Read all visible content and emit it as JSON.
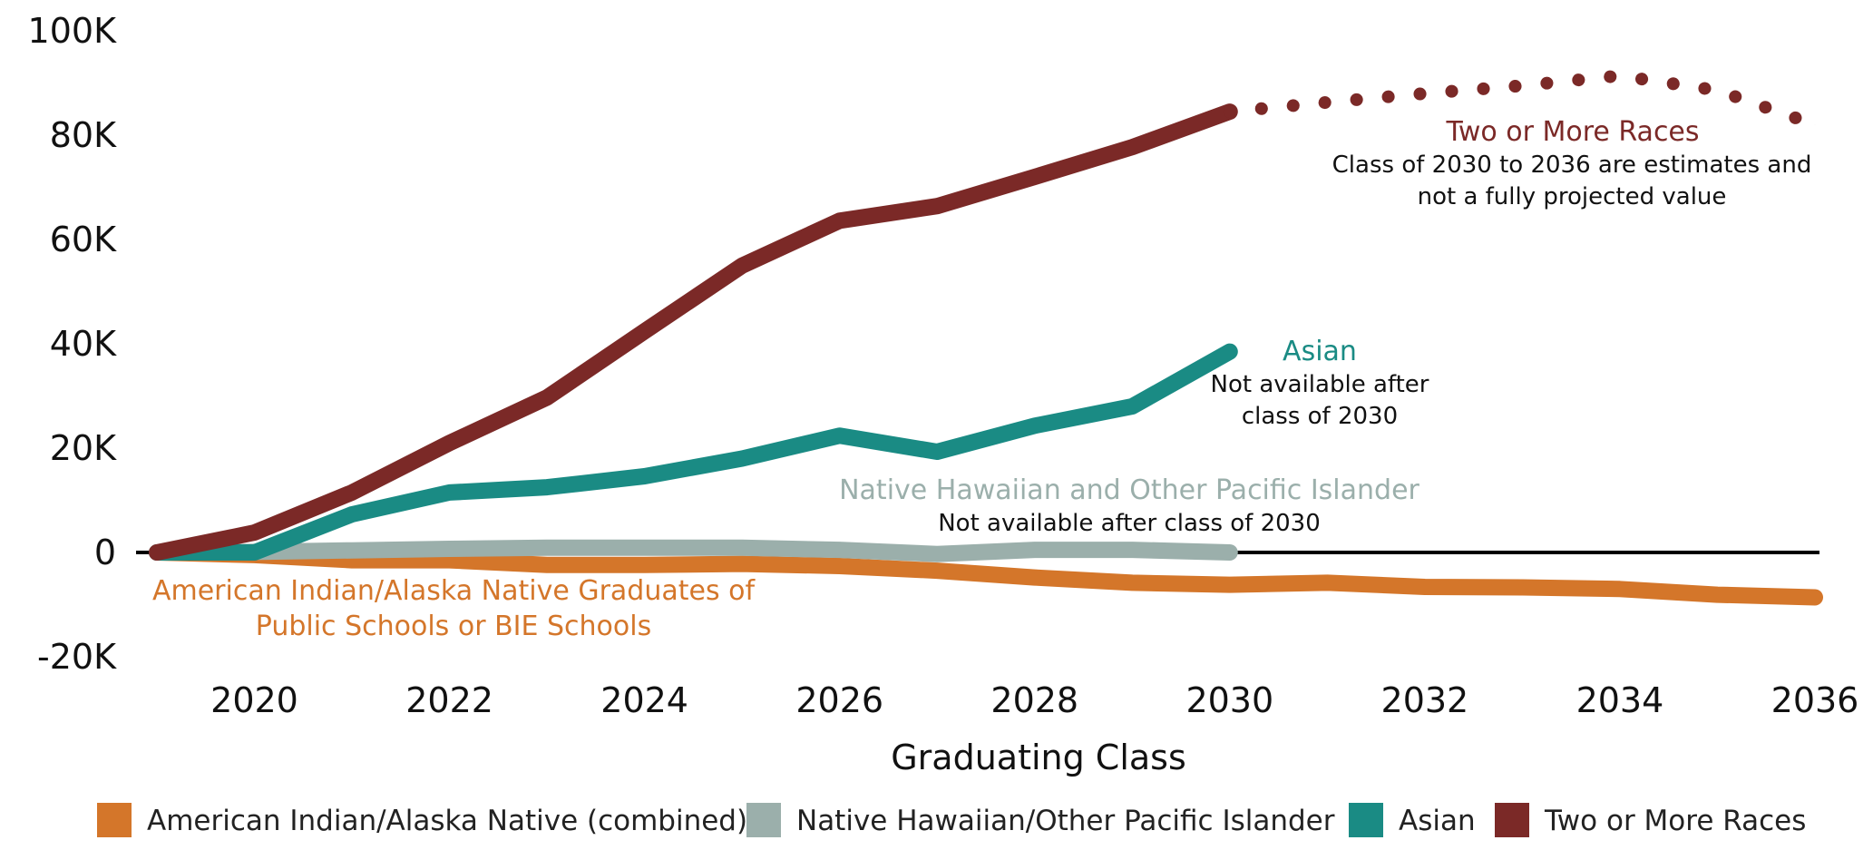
{
  "chart_data": {
    "type": "line",
    "title": "",
    "xlabel": "Graduating Class",
    "ylabel": "",
    "xlim": [
      2019,
      2036
    ],
    "ylim": [
      -20000,
      100000
    ],
    "grid": false,
    "zero_line": true,
    "y_ticks": [
      {
        "value": 100000,
        "label": "100K"
      },
      {
        "value": 80000,
        "label": "80K"
      },
      {
        "value": 60000,
        "label": "60K"
      },
      {
        "value": 40000,
        "label": "40K"
      },
      {
        "value": 20000,
        "label": "20K"
      },
      {
        "value": 0,
        "label": "0"
      },
      {
        "value": -20000,
        "label": "-20K"
      }
    ],
    "x_ticks": [
      {
        "value": 2020,
        "label": "2020"
      },
      {
        "value": 2022,
        "label": "2022"
      },
      {
        "value": 2024,
        "label": "2024"
      },
      {
        "value": 2026,
        "label": "2026"
      },
      {
        "value": 2028,
        "label": "2028"
      },
      {
        "value": 2030,
        "label": "2030"
      },
      {
        "value": 2032,
        "label": "2032"
      },
      {
        "value": 2034,
        "label": "2034"
      },
      {
        "value": 2036,
        "label": "2036"
      }
    ],
    "legend_position": "bottom",
    "series": [
      {
        "name": "American Indian/Alaska Native (combined)",
        "key": "aian",
        "color": "#D4762A",
        "x": [
          2019,
          2020,
          2021,
          2022,
          2023,
          2024,
          2025,
          2026,
          2027,
          2028,
          2029,
          2030,
          2031,
          2032,
          2033,
          2034,
          2035,
          2036
        ],
        "values": [
          0,
          -500,
          -1500,
          -1500,
          -2400,
          -2400,
          -2200,
          -2600,
          -3500,
          -4800,
          -5800,
          -6200,
          -5800,
          -6600,
          -6700,
          -7000,
          -8100,
          -8600
        ]
      },
      {
        "name": "Native Hawaiian/Other Pacific Islander",
        "key": "nhpi",
        "color": "#9BAFAB",
        "x": [
          2019,
          2020,
          2021,
          2022,
          2023,
          2024,
          2025,
          2026,
          2027,
          2028,
          2029,
          2030
        ],
        "values": [
          0,
          100,
          400,
          700,
          900,
          900,
          900,
          500,
          -300,
          500,
          500,
          0
        ]
      },
      {
        "name": "Asian",
        "key": "asian",
        "color": "#1A8B84",
        "x": [
          2019,
          2020,
          2021,
          2022,
          2023,
          2024,
          2025,
          2026,
          2027,
          2028,
          2029,
          2030
        ],
        "values": [
          0,
          0,
          7300,
          11500,
          12500,
          14600,
          18000,
          22400,
          19300,
          24300,
          28000,
          38500
        ]
      },
      {
        "name": "Two or More Races",
        "key": "two_or_more",
        "color": "#7B2927",
        "x": [
          2019,
          2020,
          2021,
          2022,
          2023,
          2024,
          2025,
          2026,
          2027,
          2028,
          2029,
          2030
        ],
        "values": [
          0,
          3800,
          11500,
          21000,
          29700,
          42400,
          55000,
          63600,
          66400,
          72000,
          77700,
          84500
        ]
      },
      {
        "name": "Two or More Races (estimate)",
        "key": "two_or_more_estimate",
        "color": "#7B2927",
        "style": "dotted",
        "x": [
          2030,
          2031,
          2032,
          2033,
          2034,
          2035,
          2036
        ],
        "values": [
          84500,
          86300,
          88000,
          89500,
          91400,
          88600,
          82000
        ]
      }
    ],
    "annotations": [
      {
        "key": "two_or_more",
        "title": "Two or More Races",
        "lines": [
          "Class of 2030 to 2036 are estimates and",
          "not a fully projected value"
        ],
        "color": "#7B2927"
      },
      {
        "key": "asian",
        "title": "Asian",
        "lines": [
          "Not available after",
          "class of 2030"
        ],
        "color": "#1A8B84"
      },
      {
        "key": "nhpi",
        "title": "Native Hawaiian and Other Pacific Islander",
        "lines": [
          "Not available after class of 2030"
        ],
        "color": "#9BAFAB"
      },
      {
        "key": "aian",
        "title_lines": [
          "American Indian/Alaska Native Graduates of",
          "Public Schools or BIE Schools"
        ],
        "color": "#D4762A"
      }
    ]
  },
  "legend": [
    {
      "label": "American Indian/Alaska Native (combined)",
      "color": "#D4762A"
    },
    {
      "label": "Native Hawaiian/Other Pacific Islander",
      "color": "#9BAFAB"
    },
    {
      "label": "Asian",
      "color": "#1A8B84"
    },
    {
      "label": "Two or More Races",
      "color": "#7B2927"
    }
  ]
}
